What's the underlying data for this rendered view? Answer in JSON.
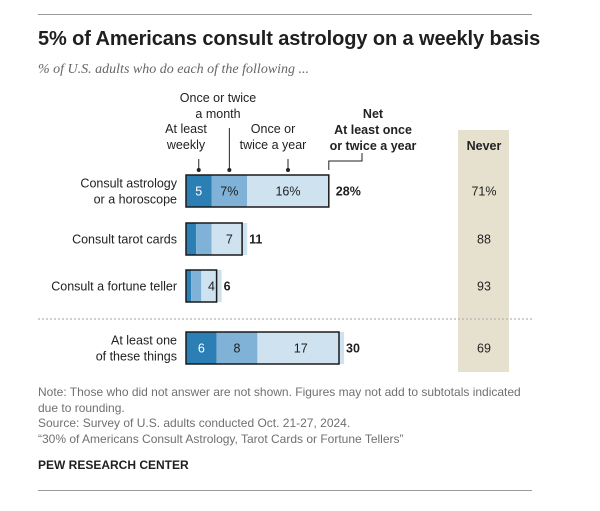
{
  "header": {
    "title": "5% of Americans consult astrology on a weekly basis",
    "subtitle": "% of U.S. adults who do each of the following ..."
  },
  "legend": {
    "weekly": [
      "At least",
      "weekly"
    ],
    "monthly": [
      "Once or twice",
      "a month"
    ],
    "yearly": [
      "Once or",
      "twice a year"
    ],
    "net": [
      "Net",
      "At least once",
      "or twice a year"
    ],
    "never": "Never"
  },
  "colors": {
    "weekly": "#2c7fb5",
    "monthly": "#7fb2d6",
    "yearly": "#cfe2ef",
    "outline": "#1a1a1a",
    "never_bg": "#e6e1cf",
    "divider": "#b5b5b5"
  },
  "chart_data": {
    "type": "bar",
    "orientation": "horizontal",
    "stacked": true,
    "title": "5% of Americans consult astrology on a weekly basis",
    "subtitle": "% of U.S. adults who do each of the following ...",
    "categories": [
      [
        "Consult astrology",
        "or a horoscope"
      ],
      [
        "Consult tarot cards"
      ],
      [
        "Consult a fortune teller"
      ],
      [
        "At least one",
        "of these things"
      ]
    ],
    "series": [
      {
        "name": "At least weekly",
        "values": [
          5,
          2,
          1,
          6
        ],
        "labels": [
          "5",
          "",
          "",
          "6"
        ]
      },
      {
        "name": "Once or twice a month",
        "values": [
          7,
          3,
          2,
          8
        ],
        "labels": [
          "7%",
          "",
          "",
          "8"
        ]
      },
      {
        "name": "Once or twice a year",
        "values": [
          16,
          7,
          4,
          17
        ],
        "labels": [
          "16%",
          "7",
          "4",
          "17"
        ]
      }
    ],
    "net": {
      "name": "Net At least once or twice a year",
      "values": [
        28,
        11,
        6,
        30
      ],
      "labels": [
        "28%",
        "11",
        "6",
        "30"
      ]
    },
    "never": {
      "name": "Never",
      "values": [
        71,
        88,
        93,
        69
      ],
      "labels": [
        "71%",
        "88",
        "93",
        "69"
      ]
    }
  },
  "notes": {
    "note_line1": "Note: Those who did not answer are not shown. Figures may not add to subtotals indicated",
    "note_line2": "due to rounding.",
    "source": "Source: Survey of U.S. adults conducted Oct. 21-27, 2024.",
    "report": "“30% of Americans Consult Astrology, Tarot Cards or Fortune Tellers”",
    "org": "PEW RESEARCH CENTER"
  }
}
